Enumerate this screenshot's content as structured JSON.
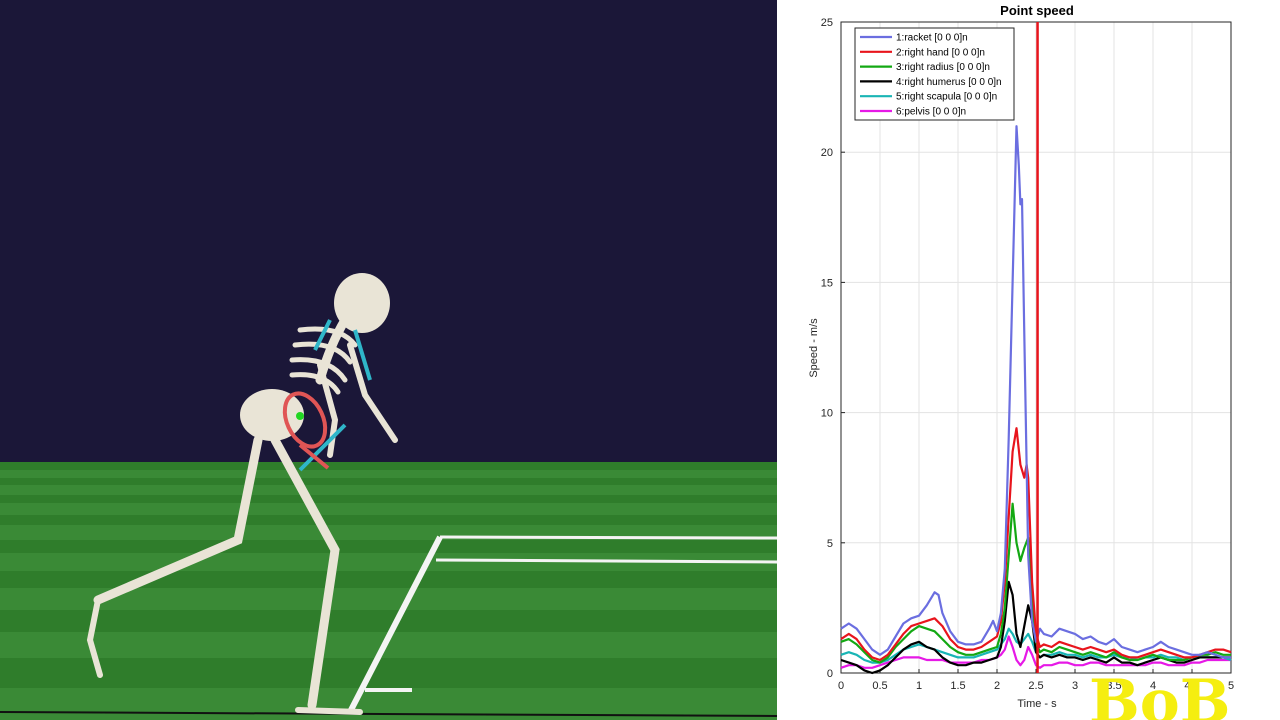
{
  "watermark": "BoB",
  "chart_data": {
    "type": "line",
    "title": "Point speed",
    "xlabel": "Time - s",
    "ylabel": "Speed - m/s",
    "xlim": [
      0,
      5
    ],
    "ylim": [
      0,
      25
    ],
    "xticks": [
      "0",
      "0.5",
      "1",
      "1.5",
      "2",
      "2.5",
      "3",
      "3.5",
      "4",
      "4.5",
      "5"
    ],
    "yticks": [
      "0",
      "5",
      "10",
      "15",
      "20",
      "25"
    ],
    "grid": true,
    "legend_position": "top-left",
    "vertical_marker": {
      "x": 2.52,
      "color": "#e8141c"
    },
    "series": [
      {
        "name": "1:racket [0 0 0]n",
        "color": "#6b6ee0",
        "x": [
          0,
          0.1,
          0.2,
          0.3,
          0.4,
          0.5,
          0.6,
          0.7,
          0.8,
          0.9,
          1.0,
          1.1,
          1.2,
          1.25,
          1.3,
          1.4,
          1.5,
          1.6,
          1.7,
          1.8,
          1.9,
          1.95,
          2.0,
          2.05,
          2.1,
          2.15,
          2.2,
          2.25,
          2.28,
          2.3,
          2.32,
          2.35,
          2.38,
          2.4,
          2.45,
          2.5,
          2.55,
          2.6,
          2.7,
          2.8,
          2.9,
          3.0,
          3.1,
          3.2,
          3.3,
          3.4,
          3.5,
          3.6,
          3.7,
          3.8,
          3.9,
          4.0,
          4.1,
          4.2,
          4.3,
          4.4,
          4.5,
          4.6,
          4.7,
          4.8,
          4.9,
          5.0
        ],
        "y": [
          1.7,
          1.9,
          1.7,
          1.3,
          0.9,
          0.7,
          0.9,
          1.4,
          1.9,
          2.1,
          2.2,
          2.6,
          3.1,
          3.0,
          2.3,
          1.6,
          1.2,
          1.1,
          1.1,
          1.2,
          1.7,
          2.0,
          1.6,
          2.3,
          4.0,
          9.0,
          15.0,
          21.0,
          19.5,
          18.0,
          18.2,
          13.0,
          8.0,
          4.5,
          2.0,
          1.2,
          1.7,
          1.5,
          1.4,
          1.7,
          1.6,
          1.5,
          1.3,
          1.4,
          1.2,
          1.1,
          1.3,
          1.0,
          0.9,
          0.8,
          0.9,
          1.0,
          1.2,
          1.0,
          0.9,
          0.8,
          0.7,
          0.7,
          0.8,
          0.7,
          0.6,
          0.6
        ]
      },
      {
        "name": "2:right hand [0 0 0]n",
        "color": "#e8141c",
        "x": [
          0,
          0.1,
          0.2,
          0.3,
          0.4,
          0.5,
          0.6,
          0.7,
          0.8,
          0.9,
          1.0,
          1.1,
          1.2,
          1.3,
          1.4,
          1.5,
          1.6,
          1.7,
          1.8,
          1.9,
          2.0,
          2.05,
          2.1,
          2.15,
          2.2,
          2.25,
          2.3,
          2.35,
          2.38,
          2.4,
          2.45,
          2.5,
          2.55,
          2.6,
          2.7,
          2.8,
          2.9,
          3.0,
          3.1,
          3.2,
          3.3,
          3.4,
          3.5,
          3.6,
          3.7,
          3.8,
          3.9,
          4.0,
          4.1,
          4.2,
          4.3,
          4.4,
          4.5,
          4.6,
          4.7,
          4.8,
          4.9,
          5.0
        ],
        "y": [
          1.3,
          1.5,
          1.3,
          0.9,
          0.6,
          0.5,
          0.7,
          1.1,
          1.5,
          1.8,
          1.9,
          2.0,
          2.1,
          1.8,
          1.3,
          1.0,
          0.9,
          0.9,
          1.0,
          1.2,
          1.4,
          2.0,
          3.5,
          6.0,
          8.5,
          9.4,
          8.0,
          7.5,
          8.0,
          7.5,
          3.5,
          1.5,
          1.0,
          1.1,
          1.0,
          1.2,
          1.1,
          1.0,
          0.9,
          1.0,
          0.9,
          0.8,
          0.9,
          0.7,
          0.6,
          0.6,
          0.7,
          0.8,
          0.9,
          0.8,
          0.7,
          0.6,
          0.6,
          0.7,
          0.8,
          0.9,
          0.9,
          0.8
        ]
      },
      {
        "name": "3:right radius [0 0 0]n",
        "color": "#13a813",
        "x": [
          0,
          0.1,
          0.2,
          0.3,
          0.4,
          0.5,
          0.6,
          0.7,
          0.8,
          0.9,
          1.0,
          1.1,
          1.2,
          1.3,
          1.4,
          1.5,
          1.6,
          1.7,
          1.8,
          1.9,
          2.0,
          2.05,
          2.1,
          2.15,
          2.2,
          2.25,
          2.3,
          2.35,
          2.4,
          2.45,
          2.5,
          2.55,
          2.6,
          2.7,
          2.8,
          2.9,
          3.0,
          3.1,
          3.2,
          3.3,
          3.4,
          3.5,
          3.6,
          3.7,
          3.8,
          3.9,
          4.0,
          4.1,
          4.2,
          4.3,
          4.4,
          4.5,
          4.6,
          4.7,
          4.8,
          4.9,
          5.0
        ],
        "y": [
          1.2,
          1.3,
          1.1,
          0.8,
          0.5,
          0.4,
          0.6,
          1.0,
          1.3,
          1.6,
          1.8,
          1.7,
          1.6,
          1.3,
          1.0,
          0.8,
          0.7,
          0.7,
          0.8,
          0.9,
          1.0,
          1.5,
          2.5,
          4.5,
          6.5,
          5.0,
          4.3,
          4.8,
          5.2,
          2.5,
          1.2,
          0.8,
          0.9,
          0.8,
          1.0,
          0.9,
          0.8,
          0.7,
          0.8,
          0.7,
          0.6,
          0.8,
          0.6,
          0.5,
          0.5,
          0.6,
          0.7,
          0.6,
          0.5,
          0.5,
          0.5,
          0.6,
          0.7,
          0.7,
          0.8,
          0.7,
          0.7
        ]
      },
      {
        "name": "4:right humerus [0 0 0]n",
        "color": "#000000",
        "x": [
          0,
          0.1,
          0.2,
          0.3,
          0.4,
          0.5,
          0.6,
          0.7,
          0.8,
          0.9,
          1.0,
          1.1,
          1.2,
          1.3,
          1.4,
          1.5,
          1.6,
          1.7,
          1.8,
          1.9,
          2.0,
          2.05,
          2.1,
          2.15,
          2.2,
          2.25,
          2.3,
          2.35,
          2.4,
          2.45,
          2.5,
          2.55,
          2.6,
          2.7,
          2.8,
          2.9,
          3.0,
          3.1,
          3.2,
          3.3,
          3.4,
          3.5,
          3.6,
          3.7,
          3.8,
          3.9,
          4.0,
          4.1,
          4.2,
          4.3,
          4.4,
          4.5,
          4.6,
          4.7,
          4.8,
          4.9,
          5.0
        ],
        "y": [
          0.5,
          0.4,
          0.3,
          0.1,
          0.0,
          0.1,
          0.3,
          0.6,
          0.9,
          1.1,
          1.2,
          1.0,
          0.9,
          0.6,
          0.4,
          0.3,
          0.3,
          0.4,
          0.4,
          0.5,
          0.6,
          1.0,
          2.0,
          3.5,
          3.0,
          1.5,
          1.0,
          1.8,
          2.6,
          2.0,
          0.8,
          0.6,
          0.7,
          0.6,
          0.7,
          0.6,
          0.6,
          0.5,
          0.6,
          0.5,
          0.4,
          0.6,
          0.4,
          0.4,
          0.3,
          0.4,
          0.5,
          0.6,
          0.5,
          0.4,
          0.4,
          0.5,
          0.6,
          0.6,
          0.6,
          0.6,
          0.6
        ]
      },
      {
        "name": "5:right scapula [0 0 0]n",
        "color": "#19b5b5",
        "x": [
          0,
          0.1,
          0.2,
          0.3,
          0.4,
          0.5,
          0.6,
          0.7,
          0.8,
          0.9,
          1.0,
          1.1,
          1.2,
          1.3,
          1.4,
          1.5,
          1.6,
          1.7,
          1.8,
          1.9,
          2.0,
          2.05,
          2.1,
          2.15,
          2.2,
          2.25,
          2.3,
          2.35,
          2.4,
          2.45,
          2.5,
          2.55,
          2.6,
          2.7,
          2.8,
          2.9,
          3.0,
          3.1,
          3.2,
          3.3,
          3.4,
          3.5,
          3.6,
          3.7,
          3.8,
          3.9,
          4.0,
          4.1,
          4.2,
          4.3,
          4.4,
          4.5,
          4.6,
          4.7,
          4.8,
          4.9,
          5.0
        ],
        "y": [
          0.7,
          0.8,
          0.7,
          0.5,
          0.4,
          0.4,
          0.5,
          0.7,
          0.9,
          1.0,
          1.1,
          1.0,
          0.9,
          0.8,
          0.7,
          0.6,
          0.6,
          0.6,
          0.7,
          0.8,
          0.9,
          1.1,
          1.3,
          1.7,
          1.5,
          1.2,
          1.1,
          1.3,
          1.5,
          1.2,
          0.8,
          0.6,
          0.7,
          0.7,
          0.8,
          0.7,
          0.7,
          0.6,
          0.7,
          0.6,
          0.6,
          0.7,
          0.6,
          0.6,
          0.5,
          0.6,
          0.6,
          0.7,
          0.6,
          0.6,
          0.5,
          0.6,
          0.6,
          0.6,
          0.6,
          0.6,
          0.5
        ]
      },
      {
        "name": "6:pelvis [0 0 0]n",
        "color": "#e619e6",
        "x": [
          0,
          0.1,
          0.2,
          0.3,
          0.4,
          0.5,
          0.6,
          0.7,
          0.8,
          0.9,
          1.0,
          1.1,
          1.2,
          1.3,
          1.4,
          1.5,
          1.6,
          1.7,
          1.8,
          1.9,
          2.0,
          2.05,
          2.1,
          2.15,
          2.2,
          2.25,
          2.3,
          2.35,
          2.4,
          2.45,
          2.5,
          2.55,
          2.6,
          2.7,
          2.8,
          2.9,
          3.0,
          3.1,
          3.2,
          3.3,
          3.4,
          3.5,
          3.6,
          3.7,
          3.8,
          3.9,
          4.0,
          4.1,
          4.2,
          4.3,
          4.4,
          4.5,
          4.6,
          4.7,
          4.8,
          4.9,
          5.0
        ],
        "y": [
          0.2,
          0.3,
          0.3,
          0.2,
          0.2,
          0.3,
          0.4,
          0.5,
          0.6,
          0.6,
          0.6,
          0.5,
          0.5,
          0.5,
          0.4,
          0.4,
          0.4,
          0.4,
          0.5,
          0.5,
          0.6,
          0.7,
          0.9,
          1.4,
          1.0,
          0.5,
          0.3,
          0.5,
          1.0,
          0.7,
          0.3,
          0.2,
          0.3,
          0.3,
          0.4,
          0.4,
          0.3,
          0.3,
          0.4,
          0.4,
          0.3,
          0.3,
          0.3,
          0.3,
          0.3,
          0.3,
          0.4,
          0.4,
          0.3,
          0.3,
          0.3,
          0.4,
          0.4,
          0.5,
          0.5,
          0.5,
          0.5
        ]
      }
    ]
  }
}
